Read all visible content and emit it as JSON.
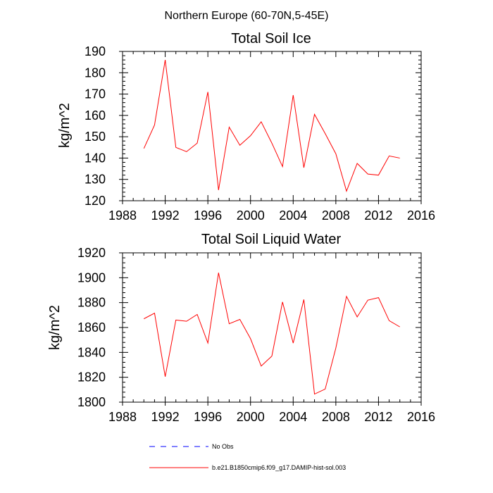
{
  "figure_title": "Northern Europe (60-70N,5-45E)",
  "colors": {
    "model_line": "#ff0000",
    "obs_line": "#0000ff",
    "axis": "#000000",
    "background": "#ffffff"
  },
  "legend": {
    "entries": [
      {
        "label": "No Obs",
        "style": "dashed",
        "color": "#0000ff"
      },
      {
        "label": "b.e21.B1850cmip6.f09_g17.DAMIP-hist-sol.003",
        "style": "solid",
        "color": "#ff0000"
      }
    ]
  },
  "chart_data": [
    {
      "type": "line",
      "title": "Total Soil Ice",
      "xlabel": "",
      "ylabel": "kg/m^2",
      "xlim": [
        1988,
        2016
      ],
      "ylim": [
        120,
        190
      ],
      "xticks": [
        1988,
        1992,
        1996,
        2000,
        2004,
        2008,
        2012,
        2016
      ],
      "yticks": [
        120,
        130,
        140,
        150,
        160,
        170,
        180,
        190
      ],
      "grid": false,
      "series": [
        {
          "name": "b.e21.B1850cmip6.f09_g17.DAMIP-hist-sol.003",
          "color": "#ff0000",
          "x": [
            1990,
            1991,
            1992,
            1993,
            1994,
            1995,
            1996,
            1997,
            1998,
            1999,
            2000,
            2001,
            2002,
            2003,
            2004,
            2005,
            2006,
            2007,
            2008,
            2009,
            2010,
            2011,
            2012,
            2013,
            2014
          ],
          "y": [
            144.5,
            155.5,
            186,
            145,
            143,
            147,
            171,
            125,
            154.5,
            146,
            150.5,
            157,
            147,
            136,
            169.5,
            135.5,
            160.5,
            151.5,
            142,
            124.5,
            137.5,
            132.5,
            132,
            141,
            140
          ]
        }
      ]
    },
    {
      "type": "line",
      "title": "Total Soil Liquid Water",
      "xlabel": "",
      "ylabel": "kg/m^2",
      "xlim": [
        1988,
        2016
      ],
      "ylim": [
        1800,
        1920
      ],
      "xticks": [
        1988,
        1992,
        1996,
        2000,
        2004,
        2008,
        2012,
        2016
      ],
      "yticks": [
        1800,
        1820,
        1840,
        1860,
        1880,
        1900,
        1920
      ],
      "grid": false,
      "series": [
        {
          "name": "b.e21.B1850cmip6.f09_g17.DAMIP-hist-sol.003",
          "color": "#ff0000",
          "x": [
            1990,
            1991,
            1992,
            1993,
            1994,
            1995,
            1996,
            1997,
            1998,
            1999,
            2000,
            2001,
            2002,
            2003,
            2004,
            2005,
            2006,
            2007,
            2008,
            2009,
            2010,
            2011,
            2012,
            2013,
            2014
          ],
          "y": [
            1867,
            1871.5,
            1820.5,
            1866,
            1865,
            1870.5,
            1847.5,
            1904,
            1863,
            1866.5,
            1851,
            1829,
            1837,
            1880.5,
            1847.5,
            1882.5,
            1806.5,
            1810.5,
            1843.5,
            1885,
            1868.5,
            1882,
            1884,
            1865.5,
            1860.5
          ]
        }
      ]
    }
  ]
}
